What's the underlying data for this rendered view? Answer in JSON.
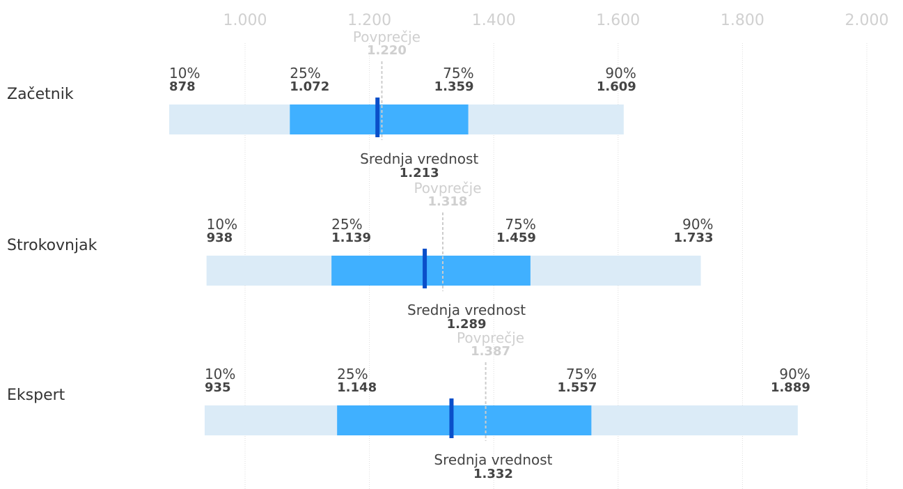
{
  "chart_data": {
    "type": "bar",
    "xlim": [
      880,
      2000
    ],
    "x_ticks": [
      {
        "value": 1000,
        "label": "1.000"
      },
      {
        "value": 1200,
        "label": "1.200"
      },
      {
        "value": 1400,
        "label": "1.400"
      },
      {
        "value": 1600,
        "label": "1.600"
      },
      {
        "value": 1800,
        "label": "1.800"
      },
      {
        "value": 2000,
        "label": "2.000"
      }
    ],
    "grid": true,
    "colors": {
      "outer": "#dbebf7",
      "inner": "#40b0ff",
      "median": "#0a4fc9",
      "average": "#cccccc",
      "grid": "#dddddd"
    },
    "labels": {
      "p10": "10%",
      "p25": "25%",
      "p75": "75%",
      "p90": "90%",
      "average": "Povprečje",
      "median": "Srednja vrednost"
    },
    "rows": [
      {
        "name": "Začetnik",
        "p10": 878,
        "p10_label": "878",
        "p25": 1072,
        "p25_label": "1.072",
        "p75": 1359,
        "p75_label": "1.359",
        "p90": 1609,
        "p90_label": "1.609",
        "median": 1213,
        "median_label": "1.213",
        "average": 1220,
        "average_label": "1.220"
      },
      {
        "name": "Strokovnjak",
        "p10": 938,
        "p10_label": "938",
        "p25": 1139,
        "p25_label": "1.139",
        "p75": 1459,
        "p75_label": "1.459",
        "p90": 1733,
        "p90_label": "1.733",
        "median": 1289,
        "median_label": "1.289",
        "average": 1318,
        "average_label": "1.318"
      },
      {
        "name": "Ekspert",
        "p10": 935,
        "p10_label": "935",
        "p25": 1148,
        "p25_label": "1.148",
        "p75": 1557,
        "p75_label": "1.557",
        "p90": 1889,
        "p90_label": "1.889",
        "median": 1332,
        "median_label": "1.332",
        "average": 1387,
        "average_label": "1.387"
      }
    ]
  }
}
